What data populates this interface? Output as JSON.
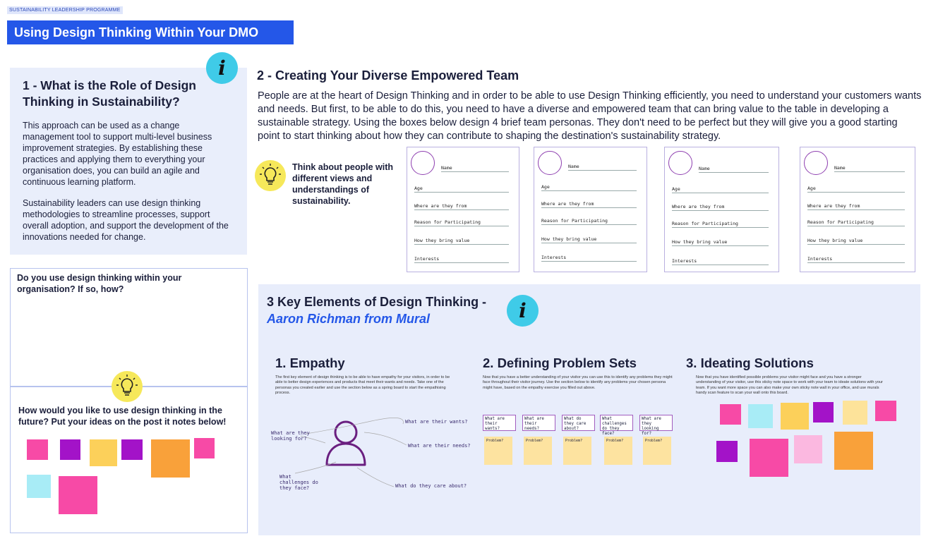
{
  "programme_tag": "SUSTAINABILITY LEADERSHIP PROGRAMME",
  "page_title": "Using Design Thinking Within Your DMO",
  "info_glyph": "i",
  "section1": {
    "title": "1 - What is the Role of Design Thinking in Sustainability?",
    "para1": "This approach can be used as a change management tool to support multi-level business improvement strategies. By establishing these practices and applying them to everything your organisation does, you can build an agile and continuous learning platform.",
    "para2": "Sustainability leaders can use design thinking methodologies to streamline processes, support overall adoption, and support the development of the innovations needed for change."
  },
  "question1": "Do you use design thinking within your organisation? If so, how?",
  "question2": "How would you like to use design thinking in the future? Put your ideas on the post it notes below!",
  "section2": {
    "title": "2 - Creating Your Diverse Empowered Team",
    "body": "People are at the heart of Design Thinking and in order to be able to use Design Thinking efficiently, you need to understand your customers wants and needs. But first, to be able to do this, you need to have a diverse and empowered team that can bring value to the table in developing a sustainable strategy. Using the boxes below design 4 brief team personas. They don't need to be perfect but they will give you a good starting point to start thinking about how they can contribute to shaping the destination's sustainability strategy.",
    "think_prompt": "Think about people with different views and understandings of sustainability."
  },
  "persona_fields": {
    "name": "Name",
    "age": "Age",
    "where": "Where are they from",
    "reason": "Reason for Participating",
    "value": "How they bring value",
    "interests": "Interests"
  },
  "section3": {
    "title": "3 Key Elements of Design Thinking -",
    "subtitle": "Aaron Richman from Mural",
    "empathy": {
      "title": "1. Empathy",
      "text": "The first key element of design thinking is to be able to have empathy for your visitors, in order to be able to better design experiences and products that meet their wants and needs. Take one of the personas you created earlier and use the section below as a spring board to start the empathising process.",
      "labels": [
        "What are they looking for?",
        "What are their wants?",
        "What are their needs?",
        "What challenges do they face?",
        "What do they care about?"
      ]
    },
    "problems": {
      "title": "2. Defining Problem Sets",
      "text": "Now that you have a better understanding of your visitor you can use this to identify any problems they might face throughout their visitor journey. Use the section below to identify any problems your chosen persona might have, based on the empathy exercise you filled out above.",
      "headers": [
        "What are their wants?",
        "What are their needs?",
        "What do they care about?",
        "What challenges do they face?",
        "What are they looking for?"
      ],
      "note_label": "Problem?"
    },
    "ideating": {
      "title": "3. Ideating Solutions",
      "text": "Now that you have identified possible problems your visitor might face and you have a stronger understanding of your visitor, use this sticky note space to work with your team to ideate solutions with your team. If you want more space you can also make your own sticky note wall in your office, and use murals handy scan feature to scan your wall onto this board."
    }
  },
  "colors": {
    "brand_blue": "#2457e8",
    "panel_blue": "#e9eefb",
    "info_cyan": "#3fcbe8",
    "bulb_yellow": "#f6e85a",
    "sticky_pink": "#f74aa6",
    "sticky_purple": "#a313c8",
    "sticky_yellow": "#fcd05a",
    "sticky_orange": "#f9a13a",
    "sticky_cyan": "#a8ecf6",
    "sticky_lightyellow": "#fde39a",
    "sticky_lightpink": "#fbb8e0"
  },
  "icons": [
    "info-icon",
    "lightbulb-icon",
    "persona-avatar-icon",
    "person-outline-icon"
  ]
}
